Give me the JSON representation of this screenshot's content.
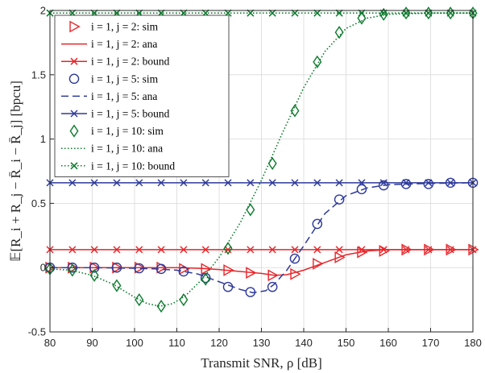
{
  "chart_data": {
    "type": "line",
    "xlabel": "Transmit SNR, ρ [dB]",
    "ylabel": "𝔼[R_i + R_j − R̄_i − R̄_j] [bpcu]",
    "xlim": [
      80,
      180
    ],
    "ylim": [
      -0.5,
      2
    ],
    "xticks": [
      80,
      90,
      100,
      110,
      120,
      130,
      140,
      150,
      160,
      170,
      180
    ],
    "yticks": [
      -0.5,
      0,
      0.5,
      1,
      1.5,
      2
    ],
    "xtick_labels": [
      "80",
      "90",
      "100",
      "110",
      "120",
      "130",
      "140",
      "150",
      "160",
      "170",
      "180"
    ],
    "ytick_labels": [
      "-0.5",
      "0",
      "0.5",
      "1",
      "1.5",
      "2"
    ],
    "grid": true,
    "legend_position": "top-left",
    "series": [
      {
        "name": "i = 1, j = 2: sim",
        "color": "#e8262a",
        "line": "none",
        "marker": "triangle-right",
        "x": [
          80,
          85.3,
          90.5,
          95.8,
          101.1,
          106.3,
          111.6,
          116.8,
          122.1,
          127.4,
          132.6,
          137.9,
          143.2,
          148.4,
          153.7,
          158.9,
          164.2,
          169.5,
          174.7,
          180
        ],
        "y": [
          0,
          0,
          0,
          0,
          0,
          0,
          -0.01,
          -0.01,
          -0.02,
          -0.04,
          -0.06,
          -0.05,
          0.03,
          0.08,
          0.12,
          0.13,
          0.14,
          0.14,
          0.14,
          0.14
        ]
      },
      {
        "name": "i = 1, j = 2: ana",
        "color": "#e8262a",
        "line": "solid",
        "marker": "none",
        "x": [
          80,
          90,
          100,
          110,
          115,
          120,
          125,
          130,
          133,
          136,
          140,
          145,
          150,
          155,
          160,
          170,
          180
        ],
        "y": [
          0,
          0,
          0,
          0,
          -0.005,
          -0.015,
          -0.03,
          -0.045,
          -0.06,
          -0.055,
          -0.02,
          0.04,
          0.1,
          0.13,
          0.14,
          0.14,
          0.14
        ]
      },
      {
        "name": "i = 1, j = 2: bound",
        "color": "#e8262a",
        "line": "solid",
        "marker": "x",
        "x": [
          80,
          85.3,
          90.5,
          95.8,
          101.1,
          106.3,
          111.6,
          116.8,
          122.1,
          127.4,
          132.6,
          137.9,
          143.2,
          148.4,
          153.7,
          158.9,
          164.2,
          169.5,
          174.7,
          180
        ],
        "y": [
          0.14,
          0.14,
          0.14,
          0.14,
          0.14,
          0.14,
          0.14,
          0.14,
          0.14,
          0.14,
          0.14,
          0.14,
          0.14,
          0.14,
          0.14,
          0.14,
          0.14,
          0.14,
          0.14,
          0.14
        ]
      },
      {
        "name": "i = 1, j = 5: sim",
        "color": "#2e3a9a",
        "line": "none",
        "marker": "circle",
        "x": [
          80,
          85.3,
          90.5,
          95.8,
          101.1,
          106.3,
          111.6,
          116.8,
          122.1,
          127.4,
          132.6,
          137.9,
          143.2,
          148.4,
          153.7,
          158.9,
          164.2,
          169.5,
          174.7,
          180
        ],
        "y": [
          0,
          0,
          0,
          0,
          -0.005,
          -0.01,
          -0.03,
          -0.08,
          -0.15,
          -0.19,
          -0.15,
          0.07,
          0.34,
          0.53,
          0.61,
          0.64,
          0.65,
          0.65,
          0.66,
          0.66
        ]
      },
      {
        "name": "i = 1, j = 5: ana",
        "color": "#2e3a9a",
        "line": "dashed",
        "marker": "none",
        "x": [
          80,
          90,
          100,
          105,
          110,
          115,
          120,
          125,
          128,
          131,
          133,
          136,
          140,
          145,
          150,
          155,
          160,
          170,
          180
        ],
        "y": [
          0,
          0,
          -0.005,
          -0.01,
          -0.02,
          -0.05,
          -0.11,
          -0.17,
          -0.195,
          -0.18,
          -0.13,
          -0.02,
          0.17,
          0.42,
          0.56,
          0.62,
          0.645,
          0.655,
          0.66
        ]
      },
      {
        "name": "i = 1, j = 5: bound",
        "color": "#2e3a9a",
        "line": "solid",
        "marker": "x",
        "x": [
          80,
          85.3,
          90.5,
          95.8,
          101.1,
          106.3,
          111.6,
          116.8,
          122.1,
          127.4,
          132.6,
          137.9,
          143.2,
          148.4,
          153.7,
          158.9,
          164.2,
          169.5,
          174.7,
          180
        ],
        "y": [
          0.66,
          0.66,
          0.66,
          0.66,
          0.66,
          0.66,
          0.66,
          0.66,
          0.66,
          0.66,
          0.66,
          0.66,
          0.66,
          0.66,
          0.66,
          0.66,
          0.66,
          0.66,
          0.66,
          0.66
        ]
      },
      {
        "name": "i = 1, j = 10: sim",
        "color": "#0b7a2c",
        "line": "none",
        "marker": "diamond",
        "x": [
          80,
          85.3,
          90.5,
          95.8,
          101.1,
          106.3,
          111.6,
          116.8,
          122.1,
          127.4,
          132.6,
          137.9,
          143.2,
          148.4,
          153.7,
          158.9,
          164.2,
          169.5,
          174.7,
          180
        ],
        "y": [
          -0.01,
          -0.02,
          -0.06,
          -0.14,
          -0.25,
          -0.3,
          -0.25,
          -0.09,
          0.15,
          0.45,
          0.81,
          1.22,
          1.6,
          1.83,
          1.94,
          1.97,
          1.98,
          1.98,
          1.98,
          1.98
        ]
      },
      {
        "name": "i = 1, j = 10: ana",
        "color": "#0b7a2c",
        "line": "dotted",
        "marker": "none",
        "x": [
          80,
          85,
          90,
          95,
          100,
          103,
          106,
          109,
          112,
          116,
          120,
          125,
          130,
          135,
          140,
          145,
          150,
          155,
          160,
          170,
          180
        ],
        "y": [
          -0.01,
          -0.02,
          -0.06,
          -0.13,
          -0.23,
          -0.28,
          -0.3,
          -0.28,
          -0.22,
          -0.09,
          0.08,
          0.35,
          0.68,
          1.05,
          1.4,
          1.68,
          1.86,
          1.94,
          1.97,
          1.98,
          1.98
        ]
      },
      {
        "name": "i = 1, j = 10: bound",
        "color": "#0b7a2c",
        "line": "dotted",
        "marker": "x",
        "x": [
          80,
          85.3,
          90.5,
          95.8,
          101.1,
          106.3,
          111.6,
          116.8,
          122.1,
          127.4,
          132.6,
          137.9,
          143.2,
          148.4,
          153.7,
          158.9,
          164.2,
          169.5,
          174.7,
          180
        ],
        "y": [
          1.98,
          1.98,
          1.98,
          1.98,
          1.98,
          1.98,
          1.98,
          1.98,
          1.98,
          1.98,
          1.98,
          1.98,
          1.98,
          1.98,
          1.98,
          1.98,
          1.98,
          1.98,
          1.98,
          1.98
        ]
      }
    ]
  }
}
